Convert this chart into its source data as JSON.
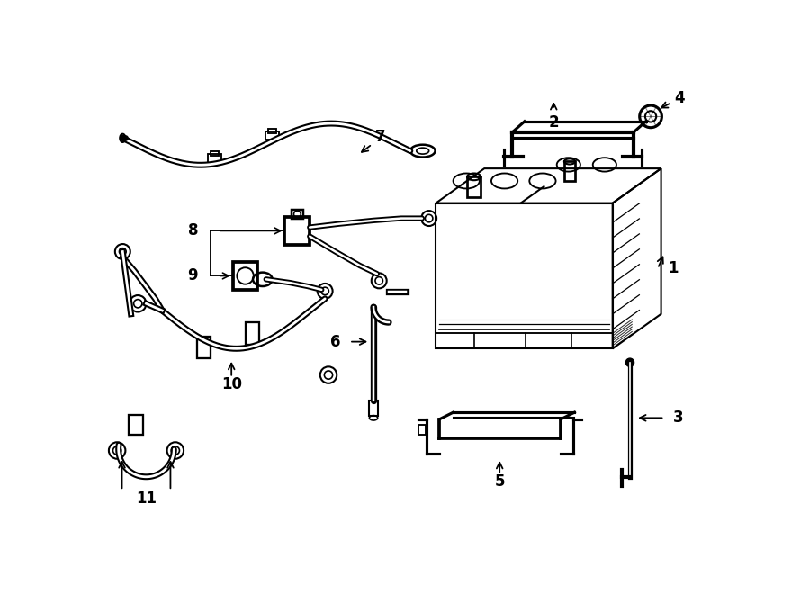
{
  "bg_color": "#ffffff",
  "line_color": "#000000",
  "lw": 1.5,
  "fig_width": 9.0,
  "fig_height": 6.61
}
